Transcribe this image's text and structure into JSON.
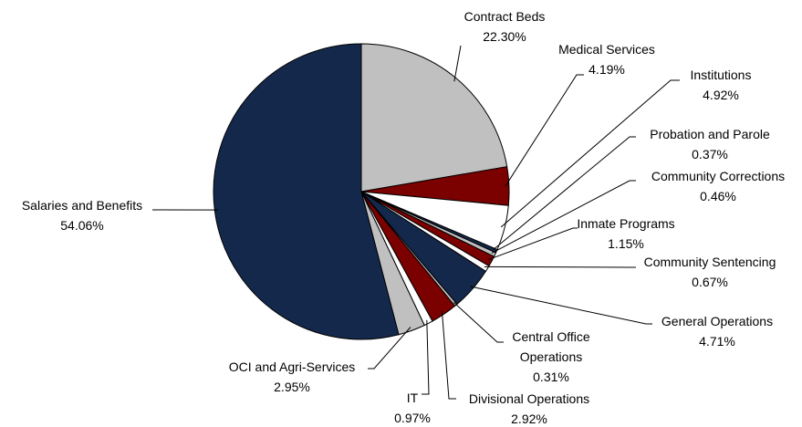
{
  "chart_data": {
    "type": "pie",
    "categories": [
      "Contract Beds",
      "Medical Services",
      "Institutions",
      "Probation and Parole",
      "Community Corrections",
      "Inmate Programs",
      "Community Sentencing",
      "General Operations",
      "Central Office Operations",
      "Divisional Operations",
      "IT",
      "OCI and Agri-Services",
      "Salaries and Benefits"
    ],
    "values": [
      22.3,
      4.19,
      4.92,
      0.37,
      0.46,
      1.15,
      0.67,
      4.71,
      0.31,
      2.92,
      0.97,
      2.95,
      54.06
    ],
    "value_labels": [
      "22.30%",
      "4.19%",
      "4.92%",
      "0.37%",
      "0.46%",
      "1.15%",
      "0.67%",
      "4.71%",
      "0.31%",
      "2.92%",
      "0.97%",
      "2.95%",
      "54.06%"
    ],
    "colors": [
      "#c0c0c0",
      "#7b0000",
      "#ffffff",
      "#14284b",
      "#c0c0c0",
      "#7b0000",
      "#ffffff",
      "#14284b",
      "#c0c0c0",
      "#7b0000",
      "#ffffff",
      "#c0c0c0",
      "#14284b"
    ]
  }
}
